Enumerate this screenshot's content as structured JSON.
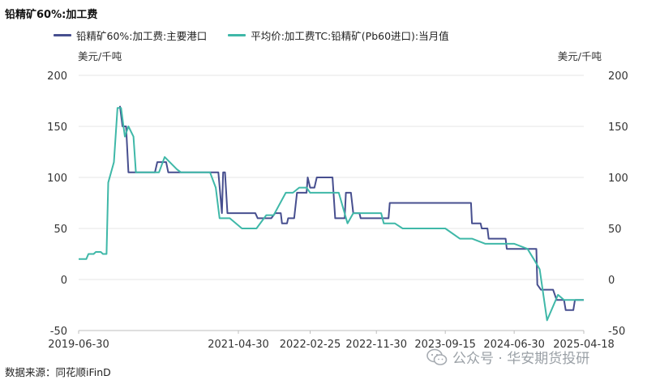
{
  "chart_data": {
    "type": "line",
    "title": "铅精矿60%:加工费",
    "unit_left": "美元/千吨",
    "unit_right": "美元/千吨",
    "source": "数据来源：同花顺iFinD",
    "watermark": "公众号 · 华安期货投研",
    "ylim": [
      -50,
      200
    ],
    "yticks": [
      -50,
      0,
      50,
      100,
      150,
      200
    ],
    "xlim": [
      "2019-06-30",
      "2025-04-18"
    ],
    "xticks": [
      "2019-06-30",
      "2021-04-30",
      "2022-02-25",
      "2022-11-30",
      "2023-09-15",
      "2024-06-30",
      "2025-04-18"
    ],
    "grid": true,
    "legend_position": "top",
    "series": [
      {
        "name": "铅精矿60%:加工费:主要港口",
        "color": "#474f8f",
        "points": [
          [
            "2019-12-20",
            170
          ],
          [
            "2019-12-31",
            150
          ],
          [
            "2020-01-15",
            150
          ],
          [
            "2020-01-25",
            105
          ],
          [
            "2020-05-15",
            105
          ],
          [
            "2020-05-25",
            115
          ],
          [
            "2020-07-01",
            115
          ],
          [
            "2020-07-10",
            105
          ],
          [
            "2021-01-15",
            105
          ],
          [
            "2021-02-05",
            105
          ],
          [
            "2021-02-20",
            65
          ],
          [
            "2021-02-25",
            105
          ],
          [
            "2021-03-05",
            105
          ],
          [
            "2021-03-15",
            65
          ],
          [
            "2021-07-10",
            65
          ],
          [
            "2021-07-20",
            60
          ],
          [
            "2021-09-15",
            60
          ],
          [
            "2021-10-01",
            65
          ],
          [
            "2021-10-25",
            65
          ],
          [
            "2021-10-30",
            55
          ],
          [
            "2021-11-20",
            55
          ],
          [
            "2021-11-25",
            60
          ],
          [
            "2021-12-20",
            60
          ],
          [
            "2022-01-01",
            85
          ],
          [
            "2022-02-10",
            85
          ],
          [
            "2022-02-15",
            100
          ],
          [
            "2022-02-25",
            90
          ],
          [
            "2022-03-15",
            90
          ],
          [
            "2022-03-25",
            100
          ],
          [
            "2022-05-30",
            100
          ],
          [
            "2022-06-10",
            60
          ],
          [
            "2022-07-20",
            60
          ],
          [
            "2022-07-25",
            85
          ],
          [
            "2022-08-15",
            85
          ],
          [
            "2022-08-25",
            65
          ],
          [
            "2022-09-20",
            65
          ],
          [
            "2022-09-25",
            60
          ],
          [
            "2023-01-20",
            60
          ],
          [
            "2023-01-25",
            75
          ],
          [
            "2024-01-01",
            75
          ],
          [
            "2024-01-05",
            55
          ],
          [
            "2024-02-10",
            55
          ],
          [
            "2024-02-15",
            50
          ],
          [
            "2024-03-10",
            50
          ],
          [
            "2024-03-15",
            40
          ],
          [
            "2024-05-25",
            40
          ],
          [
            "2024-05-30",
            30
          ],
          [
            "2024-10-01",
            30
          ],
          [
            "2024-10-05",
            -5
          ],
          [
            "2024-10-20",
            -10
          ],
          [
            "2024-12-10",
            -10
          ],
          [
            "2024-12-25",
            -20
          ],
          [
            "2025-01-25",
            -20
          ],
          [
            "2025-02-01",
            -30
          ],
          [
            "2025-03-05",
            -30
          ],
          [
            "2025-03-12",
            -20
          ],
          [
            "2025-04-18",
            -20
          ]
        ]
      },
      {
        "name": "平均价:加工费TC:铅精矿(Pb60进口):当月值",
        "color": "#3fb8a8",
        "points": [
          [
            "2019-06-30",
            20
          ],
          [
            "2019-08-01",
            20
          ],
          [
            "2019-08-10",
            25
          ],
          [
            "2019-09-01",
            25
          ],
          [
            "2019-09-10",
            27
          ],
          [
            "2019-10-01",
            27
          ],
          [
            "2019-10-10",
            25
          ],
          [
            "2019-10-25",
            25
          ],
          [
            "2019-11-01",
            95
          ],
          [
            "2019-11-25",
            115
          ],
          [
            "2019-12-10",
            168
          ],
          [
            "2019-12-25",
            168
          ],
          [
            "2020-01-10",
            140
          ],
          [
            "2020-01-25",
            150
          ],
          [
            "2020-02-15",
            140
          ],
          [
            "2020-02-25",
            105
          ],
          [
            "2020-06-01",
            105
          ],
          [
            "2020-06-25",
            120
          ],
          [
            "2020-08-15",
            108
          ],
          [
            "2020-09-01",
            105
          ],
          [
            "2021-01-01",
            105
          ],
          [
            "2021-01-25",
            90
          ],
          [
            "2021-02-10",
            60
          ],
          [
            "2021-03-25",
            60
          ],
          [
            "2021-05-15",
            50
          ],
          [
            "2021-07-15",
            50
          ],
          [
            "2021-08-25",
            63
          ],
          [
            "2021-09-25",
            63
          ],
          [
            "2021-11-15",
            85
          ],
          [
            "2021-12-15",
            85
          ],
          [
            "2022-01-10",
            90
          ],
          [
            "2022-02-10",
            90
          ],
          [
            "2022-02-25",
            85
          ],
          [
            "2022-06-25",
            85
          ],
          [
            "2022-08-01",
            55
          ],
          [
            "2022-08-25",
            65
          ],
          [
            "2022-12-20",
            65
          ],
          [
            "2022-12-31",
            55
          ],
          [
            "2023-02-15",
            55
          ],
          [
            "2023-03-20",
            50
          ],
          [
            "2023-09-15",
            50
          ],
          [
            "2023-11-15",
            40
          ],
          [
            "2024-01-05",
            40
          ],
          [
            "2024-03-01",
            35
          ],
          [
            "2024-06-30",
            35
          ],
          [
            "2024-08-25",
            30
          ],
          [
            "2024-09-20",
            20
          ],
          [
            "2024-10-15",
            10
          ],
          [
            "2024-11-15",
            -40
          ],
          [
            "2024-12-31",
            -15
          ],
          [
            "2025-01-25",
            -20
          ],
          [
            "2025-04-18",
            -20
          ]
        ]
      }
    ]
  }
}
